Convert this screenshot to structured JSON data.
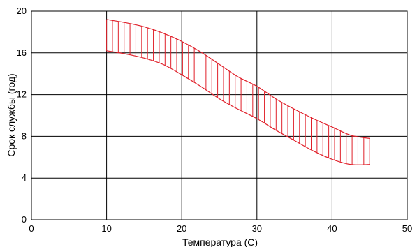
{
  "chart_data": {
    "type": "area",
    "title": "",
    "xlabel": "Температура (C)",
    "ylabel": "Срок службы (год)",
    "xlim": [
      0,
      50
    ],
    "ylim": [
      0,
      20
    ],
    "xticks": [
      "0",
      "10",
      "20",
      "30",
      "40",
      "50"
    ],
    "yticks": [
      "0",
      "4",
      "8",
      "12",
      "16",
      "20"
    ],
    "grid": true,
    "legend": "none",
    "fill_style": "vertical-hatch",
    "series_color": "#e0202a",
    "series": [
      {
        "x": [
          10,
          12.5,
          15,
          17.5,
          20,
          22.5,
          25,
          27.5,
          30,
          32.5,
          35,
          37.5,
          40,
          42.5,
          45
        ],
        "upper": [
          19.2,
          18.9,
          18.5,
          17.9,
          17.1,
          16.1,
          14.9,
          13.7,
          12.8,
          11.6,
          10.6,
          9.7,
          8.9,
          8.1,
          7.8
        ],
        "lower": [
          16.2,
          15.9,
          15.5,
          14.9,
          13.9,
          12.8,
          11.6,
          10.6,
          9.7,
          8.6,
          7.6,
          6.6,
          5.8,
          5.3,
          5.3
        ]
      }
    ]
  }
}
